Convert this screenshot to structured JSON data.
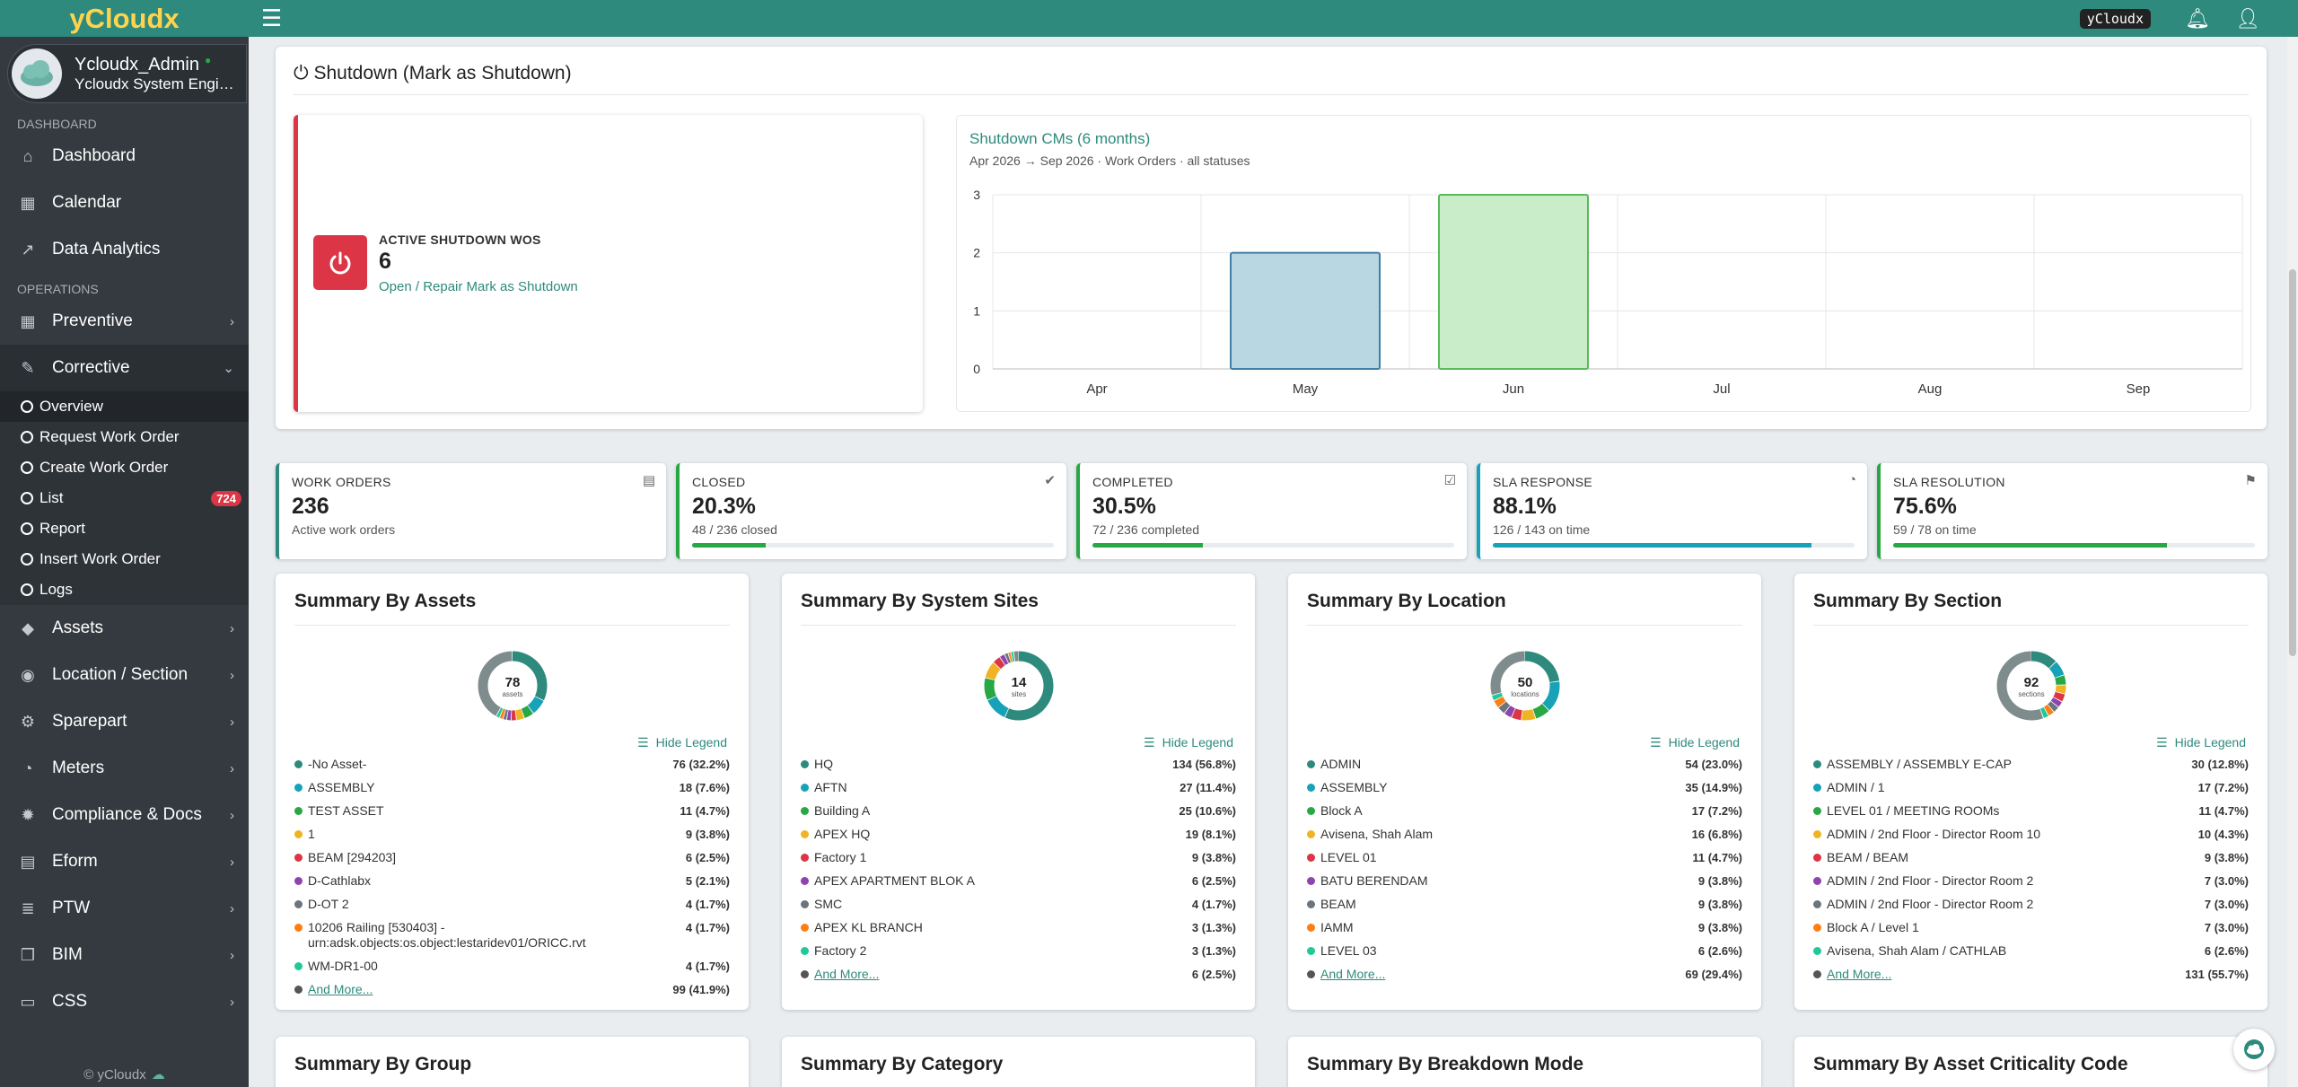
{
  "app": {
    "brand": "yCloudx",
    "topbar_tag": "yCloudx",
    "footer": "© yCloudx"
  },
  "user": {
    "name": "Ycloudx_Admin",
    "role": "Ycloudx System Engin..."
  },
  "sidebar": {
    "dashboard_header": "DASHBOARD",
    "operations_header": "OPERATIONS",
    "items": {
      "dashboard": "Dashboard",
      "calendar": "Calendar",
      "analytics": "Data Analytics",
      "preventive": "Preventive",
      "corrective": "Corrective",
      "assets": "Assets",
      "location": "Location / Section",
      "sparepart": "Sparepart",
      "meters": "Meters",
      "compliance": "Compliance & Docs",
      "eform": "Eform",
      "ptw": "PTW",
      "bim": "BIM",
      "css": "CSS"
    },
    "corrective_sub": {
      "overview": "Overview",
      "request": "Request Work Order",
      "create": "Create Work Order",
      "list": "List",
      "list_badge": "724",
      "report": "Report",
      "insert": "Insert Work Order",
      "logs": "Logs"
    }
  },
  "shutdown": {
    "title": "Shutdown (Mark as Shutdown)",
    "label": "ACTIVE SHUTDOWN WOS",
    "count": "6",
    "link": "Open / Repair Mark as Shutdown",
    "chart_title": "Shutdown CMs (6 months)",
    "chart_sub": "Apr 2026 → Sep 2026 · Work Orders · all statuses"
  },
  "chart_data": {
    "type": "bar",
    "categories": [
      "Apr",
      "May",
      "Jun",
      "Jul",
      "Aug",
      "Sep"
    ],
    "values": [
      0,
      2,
      3,
      0,
      0,
      0
    ],
    "bar_colors": [
      "#b9d7e3",
      "#b9d7e3",
      "#c9ecc9",
      "#b9d7e3",
      "#b9d7e3",
      "#b9d7e3"
    ],
    "ylim": [
      0,
      3
    ],
    "yticks": [
      "0",
      "1",
      "2",
      "3"
    ]
  },
  "kpis": [
    {
      "label": "WORK ORDERS",
      "value": "236",
      "sub": "Active work orders",
      "progress": null
    },
    {
      "label": "CLOSED",
      "value": "20.3%",
      "sub": "48 / 236 closed",
      "progress": 0.203
    },
    {
      "label": "COMPLETED",
      "value": "30.5%",
      "sub": "72 / 236 completed",
      "progress": 0.305
    },
    {
      "label": "SLA RESPONSE",
      "value": "88.1%",
      "sub": "126 / 143 on time",
      "progress": 0.881
    },
    {
      "label": "SLA RESOLUTION",
      "value": "75.6%",
      "sub": "59 / 78 on time",
      "progress": 0.756
    }
  ],
  "summaries": [
    {
      "title": "Summary By Assets",
      "center": "78",
      "center_sub": "assets",
      "hide": "Hide Legend",
      "more": "And More...",
      "more_val": "99 (41.9%)",
      "rows": [
        [
          "-No Asset-",
          "76 (32.2%)"
        ],
        [
          "ASSEMBLY",
          "18 (7.6%)"
        ],
        [
          "TEST ASSET",
          "11 (4.7%)"
        ],
        [
          "1",
          "9 (3.8%)"
        ],
        [
          "BEAM [294203]",
          "6 (2.5%)"
        ],
        [
          "D-Cathlabx",
          "5 (2.1%)"
        ],
        [
          "D-OT 2",
          "4 (1.7%)"
        ],
        [
          "10206 Railing [530403] - urn:adsk.objects:os.object:lestaridev01/ORICC.rvt",
          "4 (1.7%)"
        ],
        [
          "WM-DR1-00",
          "4 (1.7%)"
        ]
      ],
      "shares": [
        32.2,
        7.6,
        4.7,
        3.8,
        2.5,
        2.1,
        1.7,
        1.7,
        1.7,
        41.9
      ]
    },
    {
      "title": "Summary By System Sites",
      "center": "14",
      "center_sub": "sites",
      "hide": "Hide Legend",
      "more": "And More...",
      "more_val": "6 (2.5%)",
      "rows": [
        [
          "HQ",
          "134 (56.8%)"
        ],
        [
          "AFTN",
          "27 (11.4%)"
        ],
        [
          "Building A",
          "25 (10.6%)"
        ],
        [
          "APEX HQ",
          "19 (8.1%)"
        ],
        [
          "Factory 1",
          "9 (3.8%)"
        ],
        [
          "APEX APARTMENT BLOK A",
          "6 (2.5%)"
        ],
        [
          "SMC",
          "4 (1.7%)"
        ],
        [
          "APEX KL BRANCH",
          "3 (1.3%)"
        ],
        [
          "Factory 2",
          "3 (1.3%)"
        ]
      ],
      "shares": [
        56.8,
        11.4,
        10.6,
        8.1,
        3.8,
        2.5,
        1.7,
        1.3,
        1.3,
        2.5
      ]
    },
    {
      "title": "Summary By Location",
      "center": "50",
      "center_sub": "locations",
      "hide": "Hide Legend",
      "more": "And More...",
      "more_val": "69 (29.4%)",
      "rows": [
        [
          "ADMIN",
          "54 (23.0%)"
        ],
        [
          "ASSEMBLY",
          "35 (14.9%)"
        ],
        [
          "Block A",
          "17 (7.2%)"
        ],
        [
          "Avisena, Shah Alam",
          "16 (6.8%)"
        ],
        [
          "LEVEL 01",
          "11 (4.7%)"
        ],
        [
          "BATU BERENDAM",
          "9 (3.8%)"
        ],
        [
          "BEAM",
          "9 (3.8%)"
        ],
        [
          "IAMM",
          "9 (3.8%)"
        ],
        [
          "LEVEL 03",
          "6 (2.6%)"
        ]
      ],
      "shares": [
        23.0,
        14.9,
        7.2,
        6.8,
        4.7,
        3.8,
        3.8,
        3.8,
        2.6,
        29.4
      ]
    },
    {
      "title": "Summary By Section",
      "center": "92",
      "center_sub": "sections",
      "hide": "Hide Legend",
      "more": "And More...",
      "more_val": "131 (55.7%)",
      "rows": [
        [
          "ASSEMBLY / ASSEMBLY E-CAP",
          "30 (12.8%)"
        ],
        [
          "ADMIN / 1",
          "17 (7.2%)"
        ],
        [
          "LEVEL 01 / MEETING ROOMs",
          "11 (4.7%)"
        ],
        [
          "ADMIN / 2nd Floor - Director Room 10",
          "10 (4.3%)"
        ],
        [
          "BEAM / BEAM",
          "9 (3.8%)"
        ],
        [
          "ADMIN / 2nd Floor - Director Room 2",
          "7 (3.0%)"
        ],
        [
          "ADMIN / 2nd Floor - Director Room 2",
          "7 (3.0%)"
        ],
        [
          "Block A / Level 1",
          "7 (3.0%)"
        ],
        [
          "Avisena, Shah Alam / CATHLAB",
          "6 (2.6%)"
        ]
      ],
      "shares": [
        12.8,
        7.2,
        4.7,
        4.3,
        3.8,
        3.0,
        3.0,
        3.0,
        2.6,
        55.7
      ]
    }
  ],
  "bottom_titles": [
    "Summary By Group",
    "Summary By Category",
    "Summary By Breakdown Mode",
    "Summary By Asset Criticality Code"
  ],
  "colors": {
    "primary": "#2d8a7c",
    "danger": "#dc3545",
    "success": "#28a745",
    "info": "#17a2b8",
    "sidebar": "#343a40"
  },
  "legend_colors": [
    "#2d8a7c",
    "#17a2b8",
    "#28a745",
    "#f0b323",
    "#dc3545",
    "#8e44ad",
    "#6c757d",
    "#fd7e14",
    "#20c997",
    "#555555"
  ]
}
